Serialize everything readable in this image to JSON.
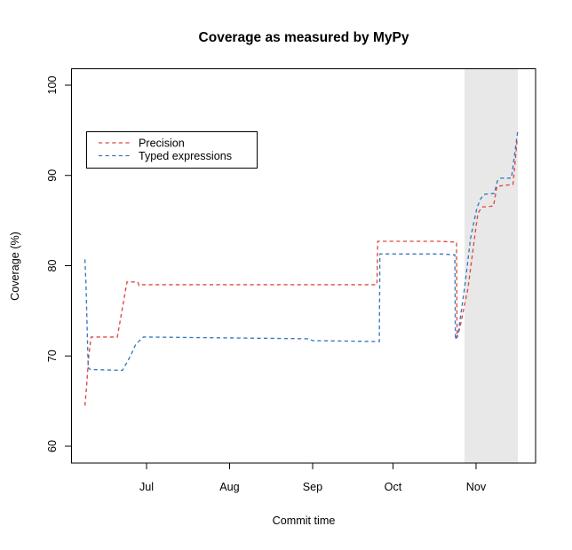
{
  "chart_data": {
    "type": "line",
    "title": "Coverage as measured by MyPy",
    "xlabel": "Commit time",
    "ylabel": "Coverage (%)",
    "line_style": "dashed",
    "grid": false,
    "legend_position": "upper-left-inside",
    "x_unit": "days since Jun 1",
    "xlim_days": [
      2,
      175
    ],
    "ylim": [
      58,
      102
    ],
    "x_ticks": [
      {
        "label": "Jul",
        "day": 30
      },
      {
        "label": "Aug",
        "day": 61
      },
      {
        "label": "Sep",
        "day": 92
      },
      {
        "label": "Oct",
        "day": 122
      },
      {
        "label": "Nov",
        "day": 153
      }
    ],
    "y_ticks": [
      60,
      70,
      80,
      90,
      100
    ],
    "highlight_band": {
      "start_day": 148.7,
      "end_day": 168.6,
      "color": "#e8e8e8"
    },
    "series": [
      {
        "name": "Precision",
        "color": "#e2483d",
        "points": [
          [
            7.0,
            64.5
          ],
          [
            7.6,
            66.5
          ],
          [
            8.4,
            70.0
          ],
          [
            9.3,
            72.1
          ],
          [
            19.1,
            72.1
          ],
          [
            22.7,
            78.2
          ],
          [
            26.7,
            78.2
          ],
          [
            27.2,
            77.8
          ],
          [
            28.3,
            77.9
          ],
          [
            116.0,
            77.9
          ],
          [
            116.3,
            82.7
          ],
          [
            140.0,
            82.7
          ],
          [
            145.7,
            82.6
          ],
          [
            145.9,
            72.0
          ],
          [
            147.0,
            73.2
          ],
          [
            150.0,
            77.5
          ],
          [
            152.7,
            83.7
          ],
          [
            153.7,
            85.8
          ],
          [
            155.2,
            86.5
          ],
          [
            159.5,
            86.6
          ],
          [
            160.8,
            88.8
          ],
          [
            166.8,
            89.0
          ],
          [
            168.3,
            93.8
          ]
        ]
      },
      {
        "name": "Typed expressions",
        "color": "#3a78bd",
        "points": [
          [
            7.0,
            80.7
          ],
          [
            7.4,
            78.0
          ],
          [
            8.2,
            68.7
          ],
          [
            9.0,
            68.5
          ],
          [
            21.0,
            68.4
          ],
          [
            24.0,
            70.0
          ],
          [
            26.0,
            71.3
          ],
          [
            28.8,
            72.1
          ],
          [
            60.0,
            72.0
          ],
          [
            90.5,
            71.9
          ],
          [
            92.0,
            71.7
          ],
          [
            116.9,
            71.6
          ],
          [
            117.1,
            81.3
          ],
          [
            140.0,
            81.3
          ],
          [
            145.1,
            81.2
          ],
          [
            145.3,
            71.8
          ],
          [
            146.3,
            72.5
          ],
          [
            148.7,
            77.5
          ],
          [
            151.0,
            83.1
          ],
          [
            153.3,
            86.4
          ],
          [
            154.7,
            87.4
          ],
          [
            156.0,
            87.9
          ],
          [
            159.8,
            88.0
          ],
          [
            161.0,
            89.4
          ],
          [
            162.2,
            89.7
          ],
          [
            166.2,
            89.7
          ],
          [
            168.6,
            95.0
          ]
        ]
      }
    ]
  }
}
